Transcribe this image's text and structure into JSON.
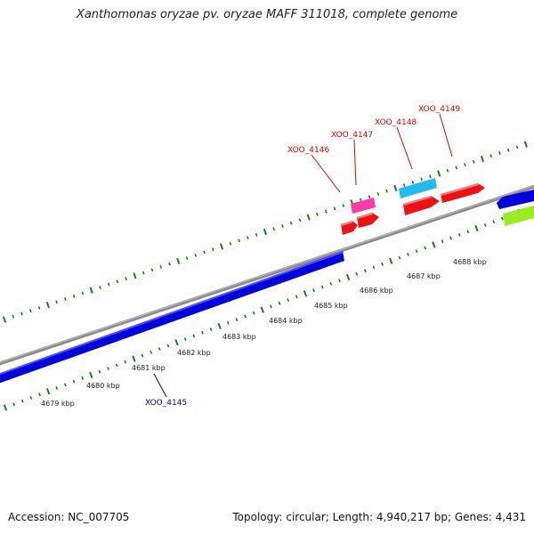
{
  "title": "Xanthomonas oryzae pv. oryzae MAFF 311018, complete genome",
  "footer": {
    "accession": "Accession: NC_007705",
    "summary": "Topology: circular; Length: 4,940,217 bp; Genes: 4,431"
  },
  "ruler": {
    "unit_suffix": "kbp",
    "labels": [
      "4679 kbp",
      "4680 kbp",
      "4681 kbp",
      "4682 kbp",
      "4683 kbp",
      "4684 kbp",
      "4685 kbp",
      "4686 kbp",
      "4687 kbp",
      "4688 kbp"
    ]
  },
  "genes": [
    {
      "name": "XOO_4145",
      "strand": "-",
      "color": "#0000dd",
      "label_color": "#0000bb"
    },
    {
      "name": "XOO_4146",
      "strand": "+",
      "color": "#ee1111",
      "label_color": "#dd0000"
    },
    {
      "name": "XOO_4147",
      "strand": "+",
      "color": "#ee1111",
      "label_color": "#dd0000"
    },
    {
      "name": "XOO_4148",
      "strand": "+",
      "color": "#ee1111",
      "label_color": "#dd0000"
    },
    {
      "name": "XOO_4149",
      "strand": "+",
      "color": "#ee1111",
      "label_color": "#dd0000"
    }
  ],
  "colors": {
    "backbone": "#8a8a8a",
    "tick": "#1f7a1f",
    "forward_gene": "#ee1111",
    "reverse_gene": "#0000dd",
    "pink_feature": "#ff3aa6",
    "cyan_feature": "#22bbee",
    "lime_feature": "#99ee22"
  }
}
